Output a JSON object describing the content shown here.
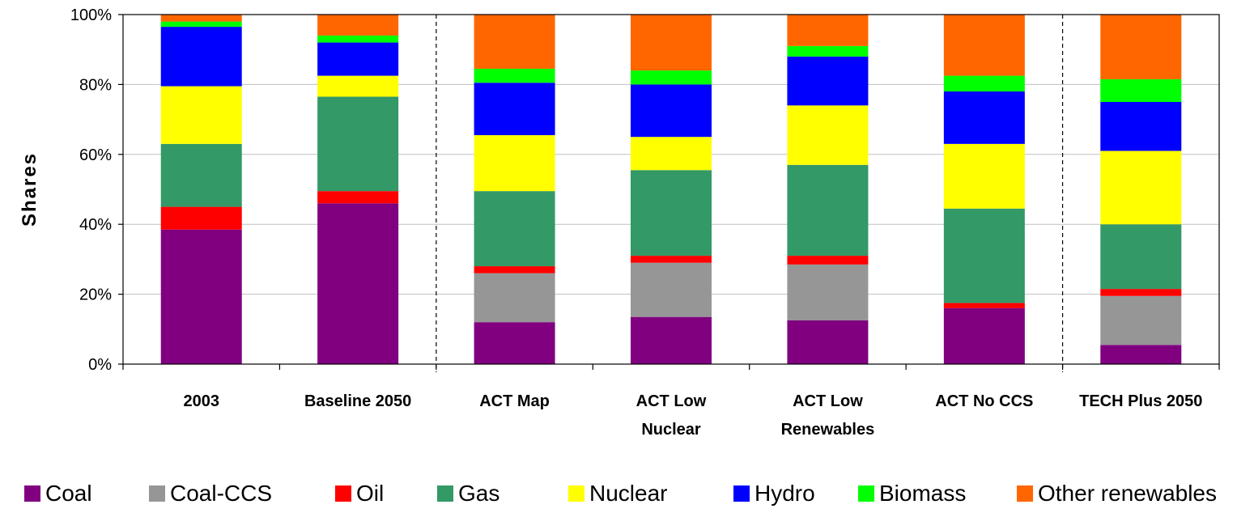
{
  "chart_data": {
    "type": "bar",
    "stacked": true,
    "percent": true,
    "ylabel": "Shares",
    "ylim": [
      0,
      100
    ],
    "yticks": [
      "0%",
      "20%",
      "40%",
      "60%",
      "80%",
      "100%"
    ],
    "categories": [
      [
        "2003"
      ],
      [
        "Baseline 2050"
      ],
      [
        "ACT Map"
      ],
      [
        "ACT Low",
        "Nuclear"
      ],
      [
        "ACT Low",
        "Renewables"
      ],
      [
        "ACT No CCS"
      ],
      [
        "TECH Plus 2050"
      ]
    ],
    "separators_after": [
      1,
      5
    ],
    "grid": true,
    "legend_position": "bottom",
    "series": [
      {
        "name": "Coal",
        "color": "#800080",
        "values": [
          38.5,
          46,
          12,
          13.5,
          12.5,
          16,
          5.5
        ]
      },
      {
        "name": "Coal-CCS",
        "color": "#969696",
        "values": [
          0,
          0,
          14,
          15.5,
          16,
          0,
          14
        ]
      },
      {
        "name": "Oil",
        "color": "#ff0000",
        "values": [
          6.5,
          3.5,
          2,
          2,
          2.5,
          1.5,
          2
        ]
      },
      {
        "name": "Gas",
        "color": "#339966",
        "values": [
          18,
          27,
          21.5,
          24.5,
          26,
          27,
          18.5
        ]
      },
      {
        "name": "Nuclear",
        "color": "#ffff00",
        "values": [
          16.5,
          6,
          16,
          9.5,
          17,
          18.5,
          21
        ]
      },
      {
        "name": "Hydro",
        "color": "#0000ff",
        "values": [
          17,
          9.5,
          15,
          15,
          14,
          15,
          14
        ]
      },
      {
        "name": "Biomass",
        "color": "#00ff00",
        "values": [
          1.5,
          2,
          4,
          4,
          3,
          4.5,
          6.5
        ]
      },
      {
        "name": "Other renewables",
        "color": "#ff6600",
        "values": [
          2,
          6,
          15.5,
          16,
          9,
          17.5,
          18.5
        ]
      }
    ]
  }
}
